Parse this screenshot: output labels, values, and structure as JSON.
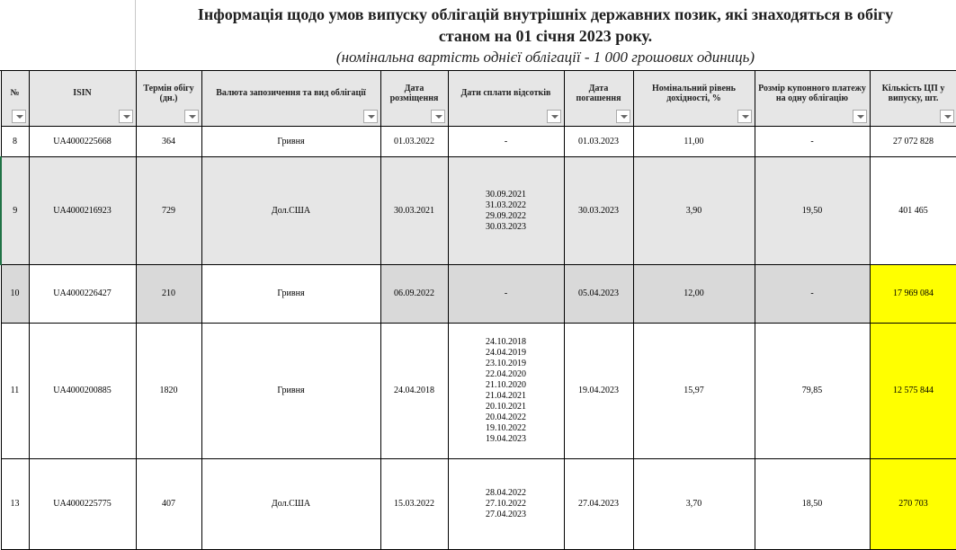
{
  "title": {
    "line1": "Інформація щодо умов випуску облігацій внутрішніх державних позик, які знаходяться в обігу",
    "line2": "станом на 01  січня 2023 року.",
    "line3": "(номінальна вартість однієї облігації - 1 000 грошових одиниць)"
  },
  "headers": [
    "№",
    "ISIN",
    "Термін обігу (дн.)",
    "Валюта запозичення та вид облігації",
    "Дата розміщення",
    "Дати сплати відсотків",
    "Дата погашення",
    "Номінальний рівень дохідності, %",
    "Розмір купонного платежу на одну облігацію",
    "Кількість ЦП у випуску, шт."
  ],
  "colors": {
    "highlight": "#ffff00",
    "header_bg": "#e6e6e6",
    "row_grey": "#d9d9d9"
  },
  "rows": [
    {
      "n": "8",
      "isin": "UA4000225668",
      "term": "364",
      "currency": "Гривня",
      "placed": "01.03.2022",
      "payments": [
        "-"
      ],
      "maturity": "01.03.2023",
      "yield": "11,00",
      "coupon": "-",
      "qty": "27 072 828"
    },
    {
      "n": "9",
      "isin": "UA4000216923",
      "term": "729",
      "currency": "Дол.США",
      "placed": "30.03.2021",
      "payments": [
        "30.09.2021",
        "31.03.2022",
        "29.09.2022",
        "30.03.2023"
      ],
      "maturity": "30.03.2023",
      "yield": "3,90",
      "coupon": "19,50",
      "qty": "401 465"
    },
    {
      "n": "10",
      "isin": "UA4000226427",
      "term": "210",
      "currency": "Гривня",
      "placed": "06.09.2022",
      "payments": [
        "-"
      ],
      "maturity": "05.04.2023",
      "yield": "12,00",
      "coupon": "-",
      "qty": "17 969 084"
    },
    {
      "n": "11",
      "isin": "UA4000200885",
      "term": "1820",
      "currency": "Гривня",
      "placed": "24.04.2018",
      "payments": [
        "24.10.2018",
        "24.04.2019",
        "23.10.2019",
        "22.04.2020",
        "21.10.2020",
        "21.04.2021",
        "20.10.2021",
        "20.04.2022",
        "19.10.2022",
        "19.04.2023"
      ],
      "maturity": "19.04.2023",
      "yield": "15,97",
      "coupon": "79,85",
      "qty": "12 575 844"
    },
    {
      "n": "13",
      "isin": "UA4000225775",
      "term": "407",
      "currency": "Дол.США",
      "placed": "15.03.2022",
      "payments": [
        "28.04.2022",
        "27.10.2022",
        "27.04.2023"
      ],
      "maturity": "27.04.2023",
      "yield": "3,70",
      "coupon": "18,50",
      "qty": "270 703"
    }
  ]
}
